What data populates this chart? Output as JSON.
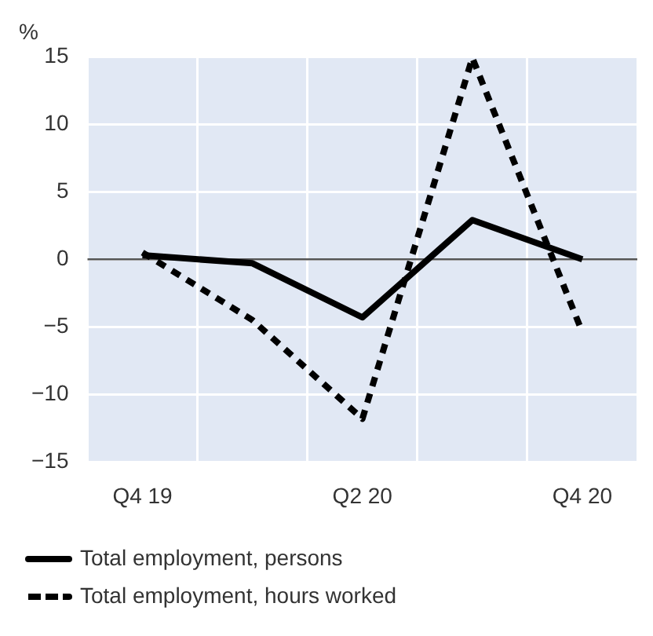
{
  "chart_data": {
    "type": "line",
    "ylabel": "%",
    "categories": [
      "Q4 19",
      null,
      "Q2 20",
      null,
      "Q4 20"
    ],
    "series": [
      {
        "name": "Total employment, persons",
        "color": "#000000",
        "line_style": "solid",
        "values": [
          0.3,
          -0.3,
          -4.3,
          2.9,
          0
        ]
      },
      {
        "name": "Total employment, hours worked",
        "color": "#000000",
        "line_style": "dashed",
        "values": [
          0.5,
          -4.5,
          -11.8,
          14.9,
          -5.4
        ]
      }
    ],
    "ylim": [
      -15,
      15
    ],
    "yticks": [
      -15,
      -10,
      -5,
      0,
      5,
      10,
      15
    ],
    "grid": true,
    "legend": "bottom",
    "marker": "none",
    "ref_lines": [
      {
        "axis": "y",
        "value": 0,
        "color": "#555555"
      }
    ]
  }
}
